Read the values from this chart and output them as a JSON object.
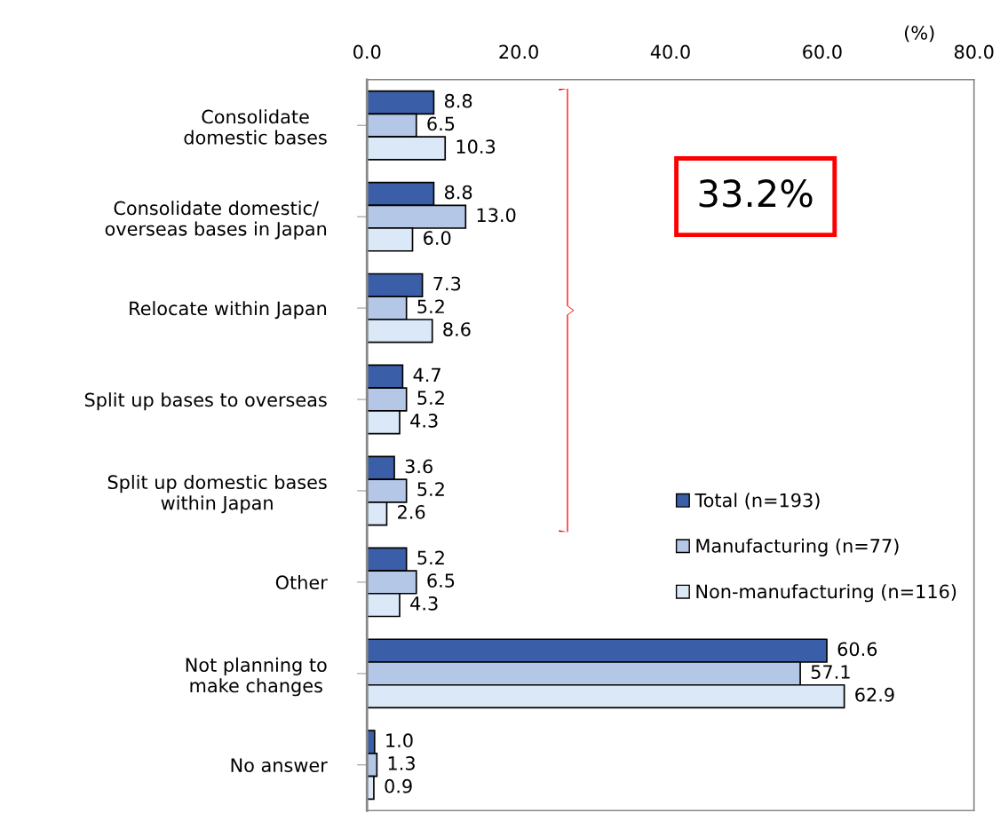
{
  "chart_data": {
    "type": "bar",
    "orientation": "horizontal",
    "xlabel": "(%)",
    "categories": [
      "Consolidate\ndomestic bases",
      "Consolidate domestic/\noverseas bases in Japan",
      "Relocate within Japan",
      "Split up bases to overseas",
      "Split up domestic bases\nwithin Japan",
      "Other",
      "Not planning to\nmake changes",
      "No answer"
    ],
    "series": [
      {
        "name": "Total (n=193)",
        "color": "#3a5fa8",
        "values": [
          8.8,
          8.8,
          7.3,
          4.7,
          3.6,
          5.2,
          60.6,
          1.0
        ],
        "value_labels": [
          "8.8",
          "8.8",
          "7.3",
          "4.7",
          "3.6",
          "5.2",
          "60.6",
          "1.0"
        ]
      },
      {
        "name": "Manufacturing (n=77)",
        "color": "#b4c7e7",
        "values": [
          6.5,
          13.0,
          5.2,
          5.2,
          5.2,
          6.5,
          57.1,
          1.3
        ],
        "value_labels": [
          "6.5",
          "13.0",
          "5.2",
          "5.2",
          "5.2",
          "6.5",
          "57.1",
          "1.3"
        ]
      },
      {
        "name": "Non-manufacturing (n=116)",
        "color": "#dae8f7",
        "values": [
          10.3,
          6.0,
          8.6,
          4.3,
          2.6,
          4.3,
          62.9,
          0.9
        ],
        "value_labels": [
          "10.3",
          "6.0",
          "8.6",
          "4.3",
          "2.6",
          "4.3",
          "62.9",
          "0.9"
        ]
      }
    ],
    "xlim": [
      0,
      80
    ],
    "xticks": [
      {
        "value": 0,
        "label": "0.0"
      },
      {
        "value": 20,
        "label": "20.0"
      },
      {
        "value": 40,
        "label": "40.0"
      },
      {
        "value": 60,
        "label": "60.0"
      },
      {
        "value": 80,
        "label": "80.0"
      }
    ],
    "grid": false,
    "legend": "right",
    "annotations": [
      "33.2%"
    ]
  }
}
